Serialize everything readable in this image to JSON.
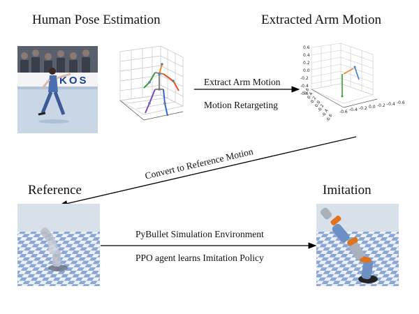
{
  "titles": {
    "pose_estimation": "Human Pose Estimation",
    "arm_motion": "Extracted Arm Motion",
    "reference": "Reference",
    "imitation": "Imitation"
  },
  "arrows": {
    "top_line1": "Extract Arm Motion",
    "top_line2": "Motion Retargeting",
    "diagonal": "Convert to Reference Motion",
    "bottom_line1": "PyBullet Simulation Environment",
    "bottom_line2": "PPO agent learns Imitation Policy"
  },
  "photo_banner_text": "KOS",
  "arm_plot": {
    "z_ticks": [
      "0.6",
      "0.4",
      "0.2",
      "0.0",
      "-0.2",
      "-0.4",
      "-0.6"
    ],
    "y_ticks": [
      "0.6",
      "0.4",
      "0.2",
      "0.0",
      "-0.2",
      "-0.4",
      "-0.6"
    ],
    "x_ticks": [
      "-0.6",
      "-0.4",
      "-0.2",
      "0.0",
      "-0.2",
      "-0.4",
      "-0.6"
    ]
  },
  "colors": {
    "sky": "#d8e0ea",
    "floor_blue": "#8aa6d4",
    "floor_white": "#eef2f8",
    "robot_gray": "#a8b0bc",
    "robot_blue": "#6d8fc4",
    "robot_orange": "#e0741e",
    "arm_orange": "#f08a24",
    "arm_blue": "#3a7fd0",
    "arm_green": "#3a9a3a"
  }
}
